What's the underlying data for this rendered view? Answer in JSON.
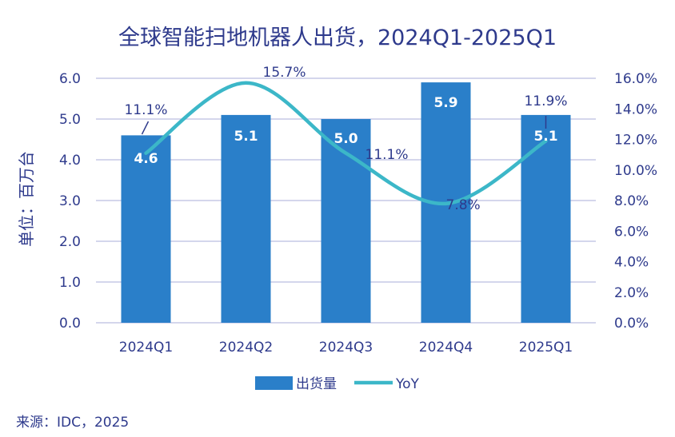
{
  "chart_data": {
    "type": "bar",
    "title": "全球智能扫地机器人出货，2024Q1-2025Q1",
    "ylabel": "单位：百万台",
    "categories": [
      "2024Q1",
      "2024Q2",
      "2024Q3",
      "2024Q4",
      "2025Q1"
    ],
    "series": [
      {
        "name": "出货量",
        "type": "bar",
        "axis": "left",
        "values": [
          4.6,
          5.1,
          5.0,
          5.9,
          5.1
        ],
        "labels": [
          "4.6",
          "5.1",
          "5.0",
          "5.9",
          "5.1"
        ],
        "color": "#2a7fc9"
      },
      {
        "name": "YoY",
        "type": "line",
        "axis": "right",
        "values": [
          11.1,
          15.7,
          11.1,
          7.8,
          11.9
        ],
        "labels": [
          "11.1%",
          "15.7%",
          "11.1%",
          "7.8%",
          "11.9%"
        ],
        "color": "#3cb7c8"
      }
    ],
    "ylim_left": [
      0,
      6
    ],
    "yticks_left": [
      "0.0",
      "1.0",
      "2.0",
      "3.0",
      "4.0",
      "5.0",
      "6.0"
    ],
    "ylim_right": [
      0,
      16
    ],
    "yticks_right": [
      "0.0%",
      "2.0%",
      "4.0%",
      "6.0%",
      "8.0%",
      "10.0%",
      "12.0%",
      "14.0%",
      "16.0%"
    ],
    "grid": true,
    "legend_position": "bottom"
  },
  "source": "来源：IDC，2025",
  "colors": {
    "text": "#2e3a8c",
    "grid": "#c5c8e6",
    "bar": "#2a7fc9",
    "line": "#3cb7c8"
  }
}
